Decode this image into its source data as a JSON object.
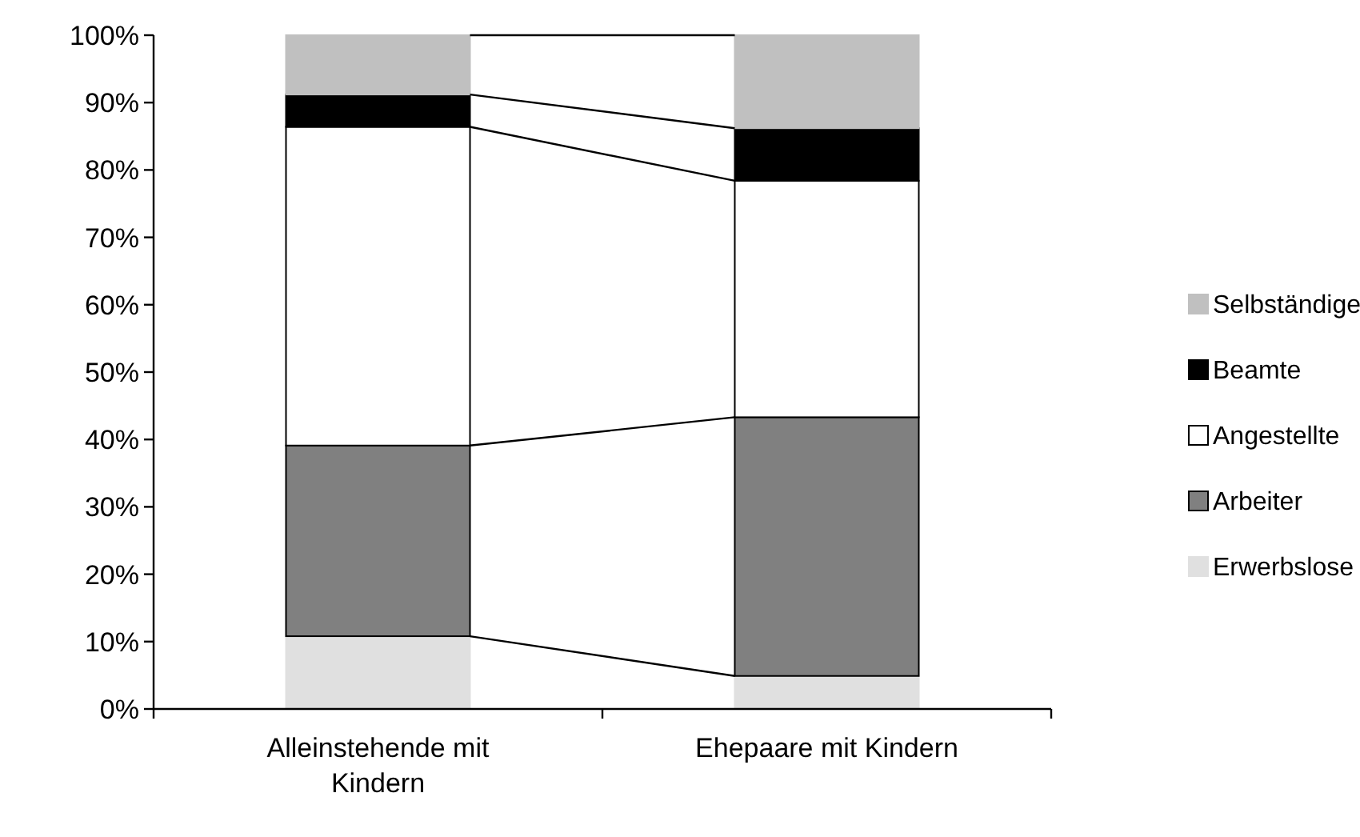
{
  "chart_data": {
    "type": "bar",
    "stacked": true,
    "categories": [
      "Alleinstehende mit Kindern",
      "Ehepaare mit Kindern"
    ],
    "series": [
      {
        "name": "Erwerbslose",
        "color": "#e0e0e0",
        "values": [
          10.8,
          4.9
        ]
      },
      {
        "name": "Arbeiter",
        "color": "#808080",
        "values": [
          28.3,
          38.4
        ]
      },
      {
        "name": "Angestellte",
        "color": "#ffffff",
        "values": [
          47.3,
          35.1
        ]
      },
      {
        "name": "Beamte",
        "color": "#000000",
        "values": [
          4.8,
          7.8
        ]
      },
      {
        "name": "Selbständige",
        "color": "#c0c0c0",
        "values": [
          8.8,
          13.8
        ]
      }
    ],
    "ylim": [
      0,
      100
    ],
    "yticks": [
      {
        "value": 0,
        "label": "0%"
      },
      {
        "value": 10,
        "label": "10%"
      },
      {
        "value": 20,
        "label": "20%"
      },
      {
        "value": 30,
        "label": "30%"
      },
      {
        "value": 40,
        "label": "40%"
      },
      {
        "value": 50,
        "label": "50%"
      },
      {
        "value": 60,
        "label": "60%"
      },
      {
        "value": 70,
        "label": "70%"
      },
      {
        "value": 80,
        "label": "80%"
      },
      {
        "value": 90,
        "label": "90%"
      },
      {
        "value": 100,
        "label": "100%"
      }
    ],
    "grid": false,
    "legend": "right"
  }
}
